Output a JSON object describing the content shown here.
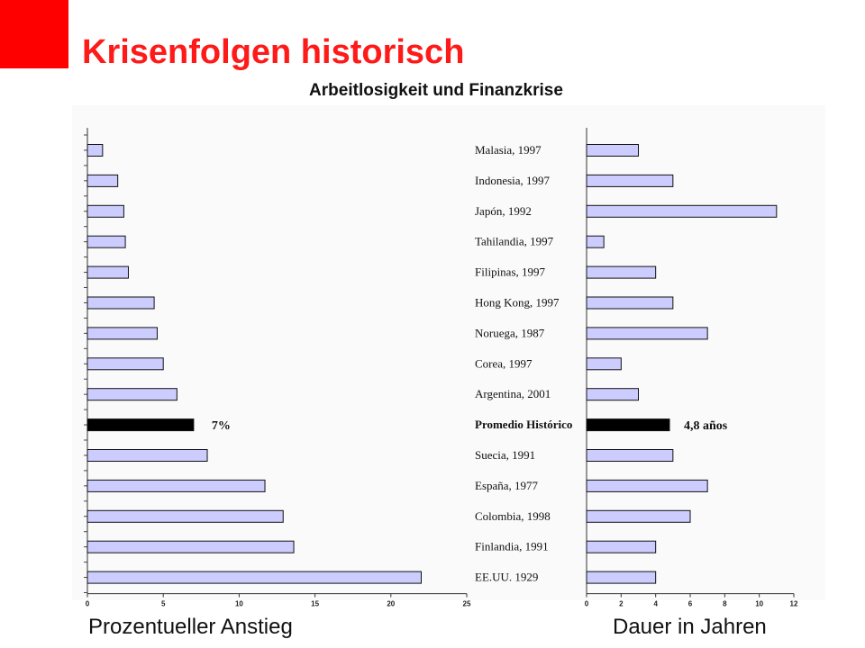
{
  "header": {
    "title": "Krisenfolgen historisch",
    "subtitle": "Arbeitlosigkeit und Finanzkrise",
    "brand_color": "#ff0000"
  },
  "captions": {
    "left": "Prozentueller Anstieg",
    "right": "Dauer in Jahren"
  },
  "chart_data": [
    {
      "type": "bar",
      "orientation": "horizontal",
      "categories": [
        "Malasia, 1997",
        "Indonesia, 1997",
        "Japón, 1992",
        "Tahilandia, 1997",
        "Filipinas, 1997",
        "Hong Kong, 1997",
        "Noruega, 1987",
        "Corea, 1997",
        "Argentina, 2001",
        "Promedio Histórico",
        "Suecia, 1991",
        "España, 1977",
        "Colombia, 1998",
        "Finlandia, 1991",
        "EE.UU. 1929"
      ],
      "values": [
        1,
        2,
        2.4,
        2.5,
        2.7,
        4.4,
        4.6,
        5,
        5.9,
        7,
        7.9,
        11.7,
        12.9,
        13.6,
        22
      ],
      "highlight": {
        "category": "Promedio Histórico",
        "label": "7%",
        "color": "#000000"
      },
      "xlim": [
        0,
        25
      ],
      "xticks": [
        "0",
        "5",
        "10",
        "15",
        "20",
        "25"
      ],
      "bar_color": "#ccccff",
      "xlabel": "Prozentueller Anstieg"
    },
    {
      "type": "bar",
      "orientation": "horizontal",
      "categories": [
        "Malasia, 1997",
        "Indonesia, 1997",
        "Japón, 1992",
        "Tahilandia, 1997",
        "Filipinas, 1997",
        "Hong Kong, 1997",
        "Noruega, 1987",
        "Corea, 1997",
        "Argentina, 2001",
        "Promedio Histórico",
        "Suecia, 1991",
        "España, 1977",
        "Colombia, 1998",
        "Finlandia, 1991",
        "EE.UU. 1929"
      ],
      "values": [
        3,
        5,
        11,
        1,
        4,
        5,
        7,
        2,
        3,
        4.8,
        5,
        7,
        6,
        4,
        4
      ],
      "highlight": {
        "category": "Promedio Histórico",
        "label": "4,8 años",
        "color": "#000000"
      },
      "xlim": [
        0,
        12
      ],
      "xticks": [
        "0",
        "2",
        "4",
        "6",
        "8",
        "10",
        "12"
      ],
      "bar_color": "#ccccff",
      "xlabel": "Dauer in Jahren"
    }
  ]
}
